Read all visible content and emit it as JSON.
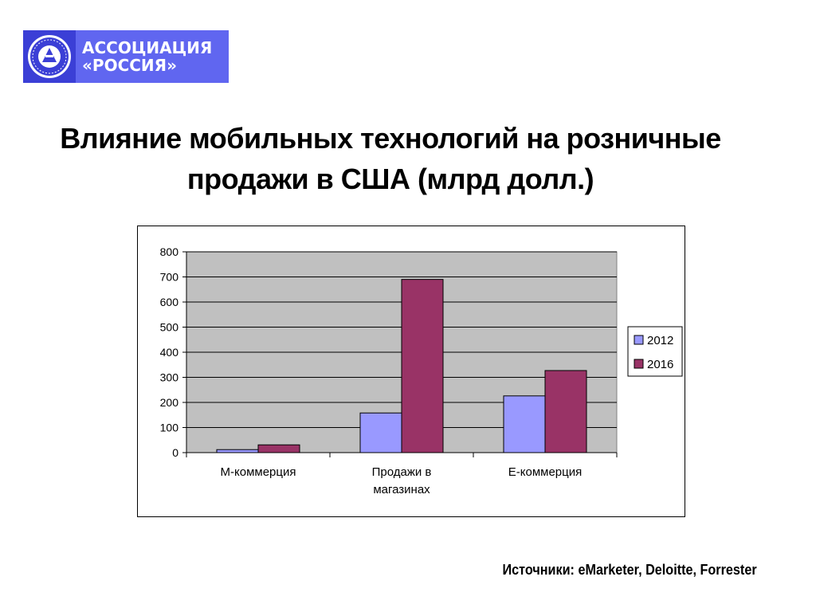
{
  "logo": {
    "line1": "АССОЦИАЦИЯ",
    "line2": "«РОССИЯ»",
    "emblem_text": "РОССИЯ"
  },
  "title": {
    "line1": "Влияние мобильных технологий на розничные",
    "line2": "продажи в США (млрд долл.)"
  },
  "source": "Источники: eMarketer, Deloitte, Forrester",
  "colors": {
    "plot_bg": "#c0c0c0",
    "series_2012": "#9999ff",
    "series_2016": "#993366",
    "logo_dark": "#3b3fd6",
    "logo_light": "#6066f0"
  },
  "chart_data": {
    "type": "bar",
    "title": "",
    "xlabel": "",
    "ylabel": "",
    "categories": [
      "М-коммерция",
      "Продажи в магазинах",
      "Е-коммерция"
    ],
    "category_lines": [
      [
        "М-коммерция"
      ],
      [
        "Продажи в",
        "магазинах"
      ],
      [
        "Е-коммерция"
      ]
    ],
    "series": [
      {
        "name": "2012",
        "values": [
          12,
          158,
          226
        ]
      },
      {
        "name": "2016",
        "values": [
          31,
          690,
          327
        ]
      }
    ],
    "ylim": [
      0,
      800
    ],
    "yticks": [
      0,
      100,
      200,
      300,
      400,
      500,
      600,
      700,
      800
    ],
    "grid": true,
    "legend": "right"
  }
}
